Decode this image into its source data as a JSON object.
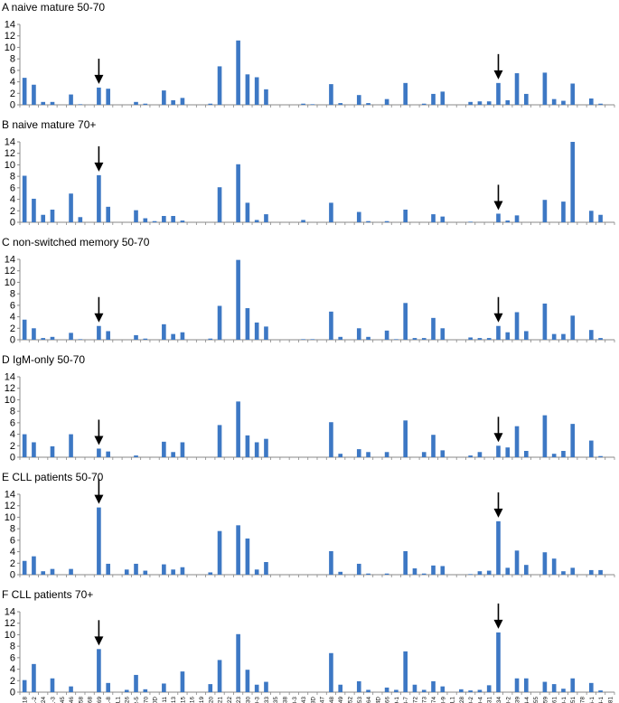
{
  "chart_data": {
    "type": "bar",
    "xlabel": "",
    "ylabel": "",
    "ylim": [
      0,
      14
    ],
    "yticks": [
      0,
      2,
      4,
      6,
      8,
      10,
      12,
      14
    ],
    "bar_color": "#3d78c4",
    "grid": false,
    "arrow_categories": [
      "IGHV1-69",
      "IGHV4-34"
    ],
    "categories": [
      "IGHV1-18",
      "IGHV1-2",
      "IGHV1-24",
      "IGHV1-3",
      "IGHV1-45",
      "IGHV1-46",
      "IGHV1-58",
      "IGHV1-68",
      "IGHV1-69",
      "IGHV1-8",
      "IGHV1-NL1",
      "IGHV2-26",
      "IGHV2-5",
      "IGHV2-70",
      "IGHV2-70D",
      "IGHV3-11",
      "IGHV3-13",
      "IGHV3-15",
      "IGHV3-16",
      "IGHV3-19",
      "IGHV3-20",
      "IGHV3-21",
      "IGHV3-22",
      "IGHV3-23",
      "IGHV3-30",
      "IGHV3-30-3",
      "IGHV3-33",
      "IGHV3-35",
      "IGHV3-38",
      "IGHV3-38-3",
      "IGHV3-43",
      "IGHV3-43D",
      "IGHV3-47",
      "IGHV3-48",
      "IGHV3-49",
      "IGHV3-52",
      "IGHV3-53",
      "IGHV3-64",
      "IGHV3-64D",
      "IGHV3-66",
      "IGHV3-69-1",
      "IGHV3-7",
      "IGHV3-72",
      "IGHV3-73",
      "IGHV3-74",
      "IGHV3-9",
      "IGHV3-NL1",
      "IGHV4-28",
      "IGHV4-30-2",
      "IGHV4-30-4",
      "IGHV4-31",
      "IGHV4-34",
      "IGHV4-38-2",
      "IGHV4-39",
      "IGHV4-4",
      "IGHV4-55",
      "IGHV4-59",
      "IGHV4-61",
      "IGHV5-10-1",
      "IGHV5-51",
      "IGHV5-78",
      "IGHV6-1",
      "IGHV7-4-1",
      "IGHV7-81"
    ],
    "panels": [
      {
        "title": "A naive mature 50-70",
        "values": [
          4.7,
          3.5,
          0.5,
          0.5,
          0,
          1.8,
          0.1,
          0,
          3.0,
          2.8,
          0,
          0,
          0.5,
          0.2,
          0,
          2.5,
          0.8,
          1.2,
          0,
          0,
          0.2,
          6.7,
          0,
          11.2,
          5.3,
          4.8,
          2.7,
          0,
          0,
          0,
          0.2,
          0.1,
          0,
          3.6,
          0.3,
          0,
          1.7,
          0.3,
          0,
          1.0,
          0,
          3.8,
          0,
          0.2,
          1.9,
          2.3,
          0,
          0,
          0.5,
          0.6,
          0.6,
          3.8,
          0.8,
          5.5,
          1.9,
          0,
          5.6,
          1.0,
          0.7,
          3.7,
          0,
          1.1,
          0.2,
          0
        ]
      },
      {
        "title": "B naive mature 70+",
        "values": [
          8.1,
          4.1,
          1.3,
          2.2,
          0,
          5.0,
          0.9,
          0,
          8.2,
          2.7,
          0,
          0,
          2.1,
          0.7,
          0.2,
          1.1,
          1.1,
          0.3,
          0,
          0,
          0,
          6.1,
          0,
          10.1,
          3.4,
          0.4,
          1.4,
          0,
          0,
          0,
          0.4,
          0,
          0,
          3.4,
          0,
          0,
          1.8,
          0.2,
          0,
          0.2,
          0,
          2.2,
          0,
          0,
          1.4,
          1.0,
          0,
          0,
          0.1,
          0,
          0,
          1.5,
          0.3,
          1.2,
          0,
          0,
          3.9,
          0,
          3.6,
          14.0,
          0,
          2.0,
          1.3,
          0
        ]
      },
      {
        "title": "C non-switched memory 50-70",
        "values": [
          3.5,
          2.0,
          0.3,
          0.5,
          0,
          1.2,
          0.1,
          0,
          2.4,
          1.5,
          0,
          0,
          0.8,
          0.2,
          0,
          2.7,
          1.0,
          1.3,
          0,
          0,
          0.2,
          5.9,
          0,
          13.9,
          5.5,
          3.0,
          2.3,
          0,
          0,
          0,
          0.1,
          0.1,
          0,
          4.9,
          0.5,
          0,
          2.0,
          0.5,
          0,
          1.6,
          0.1,
          6.4,
          0.3,
          0.3,
          3.8,
          2.0,
          0,
          0,
          0.4,
          0.3,
          0.3,
          2.4,
          1.3,
          4.8,
          1.5,
          0,
          6.3,
          1.0,
          1.0,
          4.2,
          0,
          1.7,
          0.3,
          0
        ]
      },
      {
        "title": "D IgM-only 50-70",
        "values": [
          4.0,
          2.6,
          0,
          1.9,
          0,
          4.0,
          0,
          0,
          1.5,
          1.0,
          0,
          0,
          0.3,
          0,
          0,
          2.7,
          0.9,
          2.6,
          0,
          0,
          0,
          5.6,
          0,
          9.7,
          3.8,
          2.6,
          3.2,
          0,
          0,
          0,
          0,
          0,
          0,
          6.1,
          0.6,
          0,
          1.4,
          0.9,
          0,
          0.9,
          0,
          6.4,
          0,
          0.9,
          3.9,
          1.2,
          0,
          0,
          0.3,
          0.9,
          0,
          2.0,
          1.7,
          5.4,
          1.1,
          0,
          7.3,
          0.6,
          1.1,
          5.8,
          0,
          2.9,
          0.2,
          0
        ]
      },
      {
        "title": "E CLL patients 50-70",
        "values": [
          2.4,
          3.2,
          0.6,
          1.0,
          0,
          1.0,
          0,
          0,
          11.7,
          1.9,
          0,
          0.9,
          1.9,
          0.7,
          0,
          1.8,
          0.9,
          1.3,
          0,
          0,
          0.4,
          7.6,
          0,
          8.6,
          6.3,
          0.9,
          2.2,
          0,
          0,
          0,
          0,
          0,
          0,
          4.1,
          0.5,
          0,
          1.9,
          0.2,
          0,
          0.2,
          0,
          4.1,
          1.1,
          0.2,
          1.6,
          1.5,
          0,
          0,
          0.1,
          0.6,
          0.7,
          9.3,
          1.2,
          4.2,
          1.7,
          0,
          3.9,
          2.8,
          0.6,
          1.2,
          0,
          0.8,
          0.8,
          0
        ]
      },
      {
        "title": "F CLL patients 70+",
        "values": [
          2.1,
          4.9,
          0,
          2.4,
          0,
          1.0,
          0,
          0,
          7.5,
          1.6,
          0,
          0.4,
          3.0,
          0.5,
          0,
          1.5,
          0,
          3.6,
          0,
          0,
          1.4,
          5.6,
          0,
          10.1,
          3.9,
          1.3,
          1.8,
          0,
          0,
          0,
          0,
          0,
          0,
          6.8,
          1.3,
          0,
          1.9,
          0.4,
          0,
          0.8,
          0.4,
          7.1,
          1.3,
          0.4,
          1.9,
          1.0,
          0,
          0.5,
          0.3,
          0.4,
          1.2,
          10.4,
          0,
          2.4,
          2.4,
          0,
          1.8,
          1.4,
          0.6,
          2.4,
          0,
          1.6,
          0.3,
          0
        ]
      }
    ]
  }
}
